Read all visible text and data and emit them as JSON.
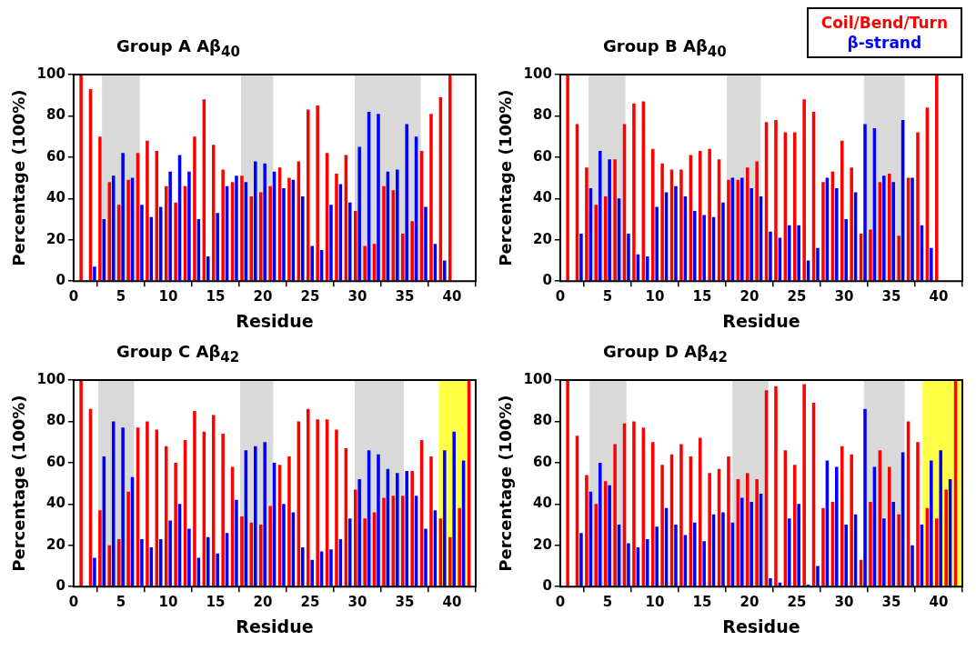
{
  "chart_data": [
    {
      "type": "bar",
      "title": "Group A Aβ$_{40}$",
      "xlabel": "Residue",
      "ylabel": "Percentage (100%)",
      "x": [
        1,
        2,
        3,
        4,
        5,
        6,
        7,
        8,
        9,
        10,
        11,
        12,
        13,
        14,
        15,
        16,
        17,
        18,
        19,
        20,
        21,
        22,
        23,
        24,
        25,
        26,
        27,
        28,
        29,
        30,
        31,
        32,
        33,
        34,
        35,
        36,
        37,
        38,
        39,
        40
      ],
      "xlim": [
        0,
        42.5
      ],
      "xticks": [
        0,
        5,
        10,
        15,
        20,
        25,
        30,
        35,
        40
      ],
      "ylim": [
        0,
        100
      ],
      "yticks": [
        0,
        20,
        40,
        60,
        80,
        100
      ],
      "series": [
        {
          "color": "#ff0000",
          "values": [
            100,
            93,
            70,
            48,
            37,
            49,
            62,
            68,
            63,
            46,
            38,
            46,
            70,
            88,
            66,
            54,
            48,
            51,
            41,
            43,
            46,
            55,
            50,
            58,
            83,
            85,
            62,
            52,
            61,
            34,
            17,
            18,
            46,
            44,
            23,
            29,
            63,
            81,
            89,
            100
          ]
        },
        {
          "color": "#0000ff",
          "values": [
            null,
            7,
            30,
            51,
            62,
            50,
            37,
            31,
            36,
            53,
            61,
            53,
            30,
            12,
            33,
            46,
            51,
            48,
            58,
            57,
            53,
            45,
            49,
            41,
            17,
            15,
            37,
            47,
            38,
            65,
            82,
            81,
            53,
            54,
            76,
            70,
            36,
            18,
            10,
            null
          ]
        }
      ],
      "bands": [
        {
          "axis": "x",
          "from": 3,
          "to": 7,
          "color": "#d9d9d9"
        },
        {
          "axis": "x",
          "from": 17.7,
          "to": 21.1,
          "color": "#d9d9d9"
        },
        {
          "axis": "x",
          "from": 29.7,
          "to": 36.7,
          "color": "#d9d9d9"
        }
      ]
    },
    {
      "type": "bar",
      "title": "Group B Aβ$_{40}$",
      "xlabel": "Residue",
      "ylabel": "Percentage (100%)",
      "legend": "top right",
      "x": [
        1,
        2,
        3,
        4,
        5,
        6,
        7,
        8,
        9,
        10,
        11,
        12,
        13,
        14,
        15,
        16,
        17,
        18,
        19,
        20,
        21,
        22,
        23,
        24,
        25,
        26,
        27,
        28,
        29,
        30,
        31,
        32,
        33,
        34,
        35,
        36,
        37,
        38,
        39,
        40
      ],
      "xlim": [
        0,
        42.5
      ],
      "xticks": [
        0,
        5,
        10,
        15,
        20,
        25,
        30,
        35,
        40
      ],
      "ylim": [
        0,
        100
      ],
      "yticks": [
        0,
        20,
        40,
        60,
        80,
        100
      ],
      "series": [
        {
          "name": "Coil/Bend/Turn",
          "color": "#ff0000",
          "values": [
            100,
            76,
            55,
            37,
            41,
            59,
            76,
            86,
            87,
            64,
            57,
            54,
            54,
            61,
            63,
            64,
            59,
            49,
            49,
            55,
            58,
            77,
            78,
            72,
            72,
            88,
            82,
            48,
            53,
            68,
            55,
            23,
            25,
            48,
            52,
            22,
            50,
            72,
            84,
            100
          ]
        },
        {
          "name": "β-strand",
          "color": "#0000ff",
          "values": [
            null,
            23,
            45,
            63,
            59,
            40,
            23,
            13,
            12,
            36,
            43,
            46,
            41,
            34,
            32,
            31,
            38,
            50,
            50,
            45,
            41,
            24,
            21,
            27,
            27,
            10,
            16,
            50,
            45,
            30,
            43,
            76,
            74,
            51,
            48,
            78,
            50,
            27,
            16,
            null
          ]
        }
      ],
      "bands": [
        {
          "axis": "x",
          "from": 3,
          "to": 6.9,
          "color": "#d9d9d9"
        },
        {
          "axis": "x",
          "from": 17.6,
          "to": 21.2,
          "color": "#d9d9d9"
        },
        {
          "axis": "x",
          "from": 32.1,
          "to": 36.4,
          "color": "#d9d9d9"
        }
      ]
    },
    {
      "type": "bar",
      "title": "Group C Aβ$_{42}$",
      "xlabel": "Residue",
      "ylabel": "Percentage (100%)",
      "x": [
        1,
        2,
        3,
        4,
        5,
        6,
        7,
        8,
        9,
        10,
        11,
        12,
        13,
        14,
        15,
        16,
        17,
        18,
        19,
        20,
        21,
        22,
        23,
        24,
        25,
        26,
        27,
        28,
        29,
        30,
        31,
        32,
        33,
        34,
        35,
        36,
        37,
        38,
        39,
        40,
        41,
        42
      ],
      "xlim": [
        0,
        42.5
      ],
      "xticks": [
        0,
        5,
        10,
        15,
        20,
        25,
        30,
        35,
        40
      ],
      "ylim": [
        0,
        100
      ],
      "yticks": [
        0,
        20,
        40,
        60,
        80,
        100
      ],
      "series": [
        {
          "color": "#ff0000",
          "values": [
            100,
            86,
            37,
            20,
            23,
            46,
            77,
            80,
            76,
            68,
            60,
            71,
            85,
            75,
            83,
            74,
            58,
            34,
            31,
            30,
            39,
            59,
            63,
            80,
            86,
            81,
            81,
            76,
            67,
            47,
            33,
            36,
            43,
            44,
            44,
            56,
            71,
            63,
            33,
            24,
            38,
            100
          ]
        },
        {
          "color": "#0000ff",
          "values": [
            null,
            14,
            63,
            80,
            77,
            53,
            23,
            19,
            23,
            32,
            40,
            28,
            14,
            24,
            16,
            26,
            42,
            66,
            68,
            70,
            60,
            40,
            36,
            19,
            13,
            17,
            18,
            23,
            33,
            52,
            66,
            64,
            57,
            55,
            56,
            44,
            28,
            37,
            66,
            75,
            61,
            null
          ]
        }
      ],
      "bands": [
        {
          "axis": "x",
          "from": 2.6,
          "to": 6.4,
          "color": "#d9d9d9"
        },
        {
          "axis": "x",
          "from": 17.6,
          "to": 21.1,
          "color": "#d9d9d9"
        },
        {
          "axis": "x",
          "from": 29.7,
          "to": 34.9,
          "color": "#d9d9d9"
        },
        {
          "axis": "x",
          "from": 38.6,
          "to": 41.7,
          "color": "#ffff44"
        }
      ]
    },
    {
      "type": "bar",
      "title": "Group D Aβ$_{42}$",
      "xlabel": "Residue",
      "ylabel": "Percentage (100%)",
      "x": [
        1,
        2,
        3,
        4,
        5,
        6,
        7,
        8,
        9,
        10,
        11,
        12,
        13,
        14,
        15,
        16,
        17,
        18,
        19,
        20,
        21,
        22,
        23,
        24,
        25,
        26,
        27,
        28,
        29,
        30,
        31,
        32,
        33,
        34,
        35,
        36,
        37,
        38,
        39,
        40,
        41,
        42
      ],
      "xlim": [
        0,
        42.5
      ],
      "xticks": [
        0,
        5,
        10,
        15,
        20,
        25,
        30,
        35,
        40
      ],
      "ylim": [
        0,
        100
      ],
      "yticks": [
        0,
        20,
        40,
        60,
        80,
        100
      ],
      "series": [
        {
          "color": "#ff0000",
          "values": [
            100,
            73,
            54,
            40,
            51,
            69,
            79,
            80,
            77,
            70,
            59,
            64,
            69,
            63,
            72,
            55,
            57,
            63,
            52,
            55,
            52,
            95,
            97,
            66,
            59,
            98,
            89,
            38,
            41,
            68,
            64,
            13,
            41,
            66,
            58,
            35,
            80,
            70,
            38,
            33,
            47,
            100
          ]
        },
        {
          "color": "#0000ff",
          "values": [
            null,
            26,
            46,
            60,
            49,
            30,
            21,
            19,
            23,
            29,
            38,
            30,
            25,
            31,
            22,
            35,
            36,
            31,
            43,
            41,
            45,
            4,
            2,
            33,
            40,
            1,
            10,
            61,
            58,
            30,
            35,
            86,
            58,
            33,
            41,
            65,
            20,
            30,
            61,
            66,
            52,
            null
          ]
        }
      ],
      "bands": [
        {
          "axis": "x",
          "from": 3.1,
          "to": 7,
          "color": "#d9d9d9"
        },
        {
          "axis": "x",
          "from": 18.2,
          "to": 22,
          "color": "#d9d9d9"
        },
        {
          "axis": "x",
          "from": 32.1,
          "to": 36.4,
          "color": "#d9d9d9"
        },
        {
          "axis": "x",
          "from": 38.3,
          "to": 42.5,
          "color": "#ffff44"
        }
      ]
    }
  ]
}
